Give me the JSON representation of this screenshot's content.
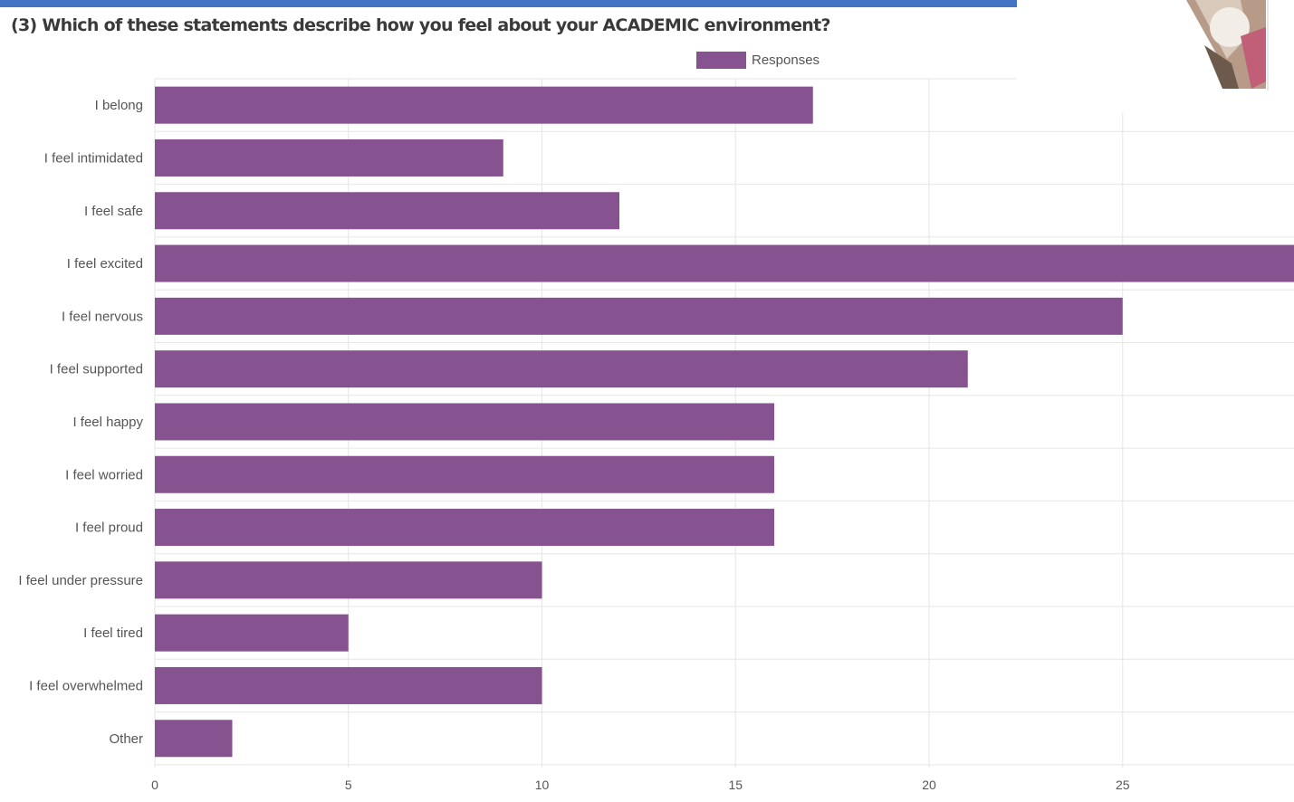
{
  "title": "(3) Which of these statements describe how you feel about your ACADEMIC environment?",
  "colors": {
    "bar": "#86528f",
    "accent_stripe": "#4472c4",
    "grid": "#e6e6e6",
    "axis_text": "#555555"
  },
  "chart_data": {
    "type": "bar",
    "orientation": "horizontal",
    "title": "(3) Which of these statements describe how you feel about your ACADEMIC environment?",
    "xlabel": "",
    "ylabel": "",
    "categories": [
      "I belong",
      "I feel intimidated",
      "I feel safe",
      "I feel excited",
      "I feel nervous",
      "I feel supported",
      "I feel happy",
      "I feel worried",
      "I feel proud",
      "I feel under pressure",
      "I feel tired",
      "I feel overwhelmed",
      "Other"
    ],
    "series": [
      {
        "name": "Responses",
        "values": [
          17,
          9,
          12,
          30,
          25,
          21,
          16,
          16,
          16,
          10,
          5,
          10,
          2
        ]
      }
    ],
    "xlim": [
      0,
      30
    ],
    "xticks": [
      0,
      5,
      10,
      15,
      20,
      25
    ],
    "grid": true,
    "legend_position": "top"
  }
}
